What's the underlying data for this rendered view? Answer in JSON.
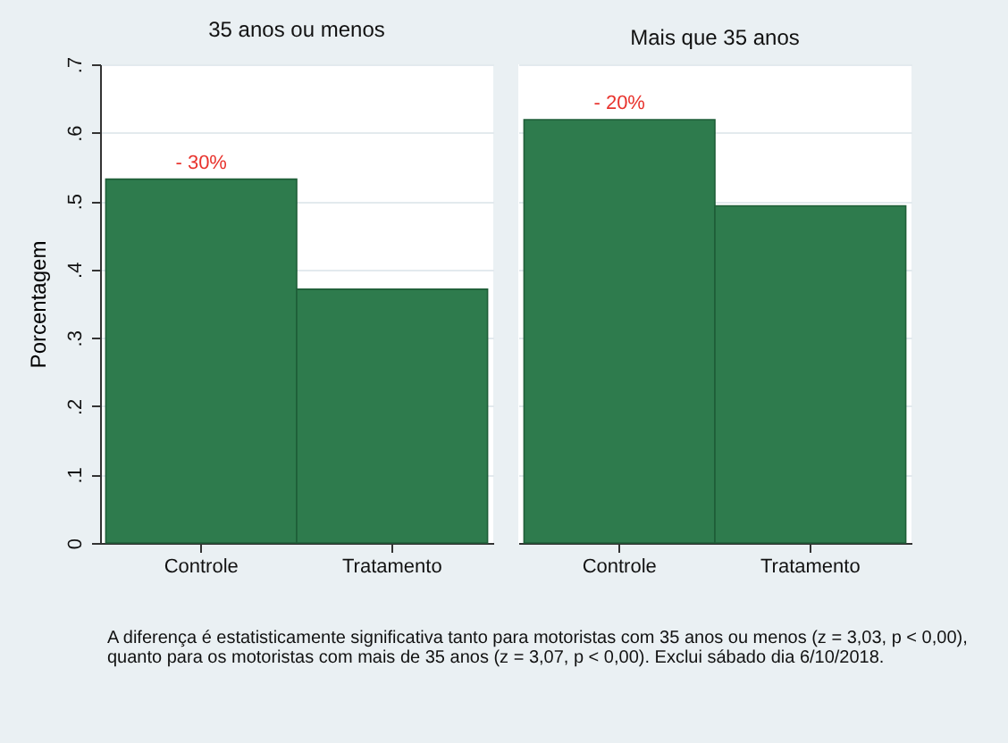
{
  "chart_data": [
    {
      "type": "bar",
      "title": "35 anos ou menos",
      "ylabel": "Porcentagem",
      "categories": [
        "Controle",
        "Tratamento"
      ],
      "values": [
        0.532,
        0.371
      ],
      "color": "#2e7b4d",
      "ylim": [
        0,
        0.7
      ],
      "yticks": [
        0,
        {
          "value": 0.1,
          "label": ".1"
        },
        {
          "value": 0.2,
          "label": ".2"
        },
        {
          "value": 0.3,
          "label": ".3"
        },
        {
          "value": 0.4,
          "label": ".4"
        },
        {
          "value": 0.5,
          "label": ".5"
        },
        {
          "value": 0.6,
          "label": ".6"
        },
        {
          "value": 0.7,
          "label": ".7"
        }
      ],
      "grid": "y",
      "annotations": [
        {
          "text": "- 30%",
          "x": "Controle",
          "y": 0.532
        },
        "A diferença é estatisticamente significativa tanto para motoristas com 35 anos ou menos (z = 3,03, p < 0,00), quanto para os motoristas com mais de 35 anos (z = 3,07, p < 0,00). Exclui sábado dia 6/10/2018."
      ]
    },
    {
      "type": "bar",
      "title": "Mais que 35 anos",
      "categories": [
        "Controle",
        "Tratamento"
      ],
      "values": [
        0.619,
        0.493
      ],
      "color": "#2e7b4d",
      "ylim": [
        0,
        0.7
      ],
      "yticks": [
        0,
        0.1,
        0.2,
        0.3,
        0.4,
        0.5,
        0.6,
        0.7
      ],
      "grid": "y",
      "tick_labels": "x",
      "annotations": [
        {
          "text": "- 20%",
          "x": "Controle",
          "y": 0.619
        }
      ]
    }
  ]
}
